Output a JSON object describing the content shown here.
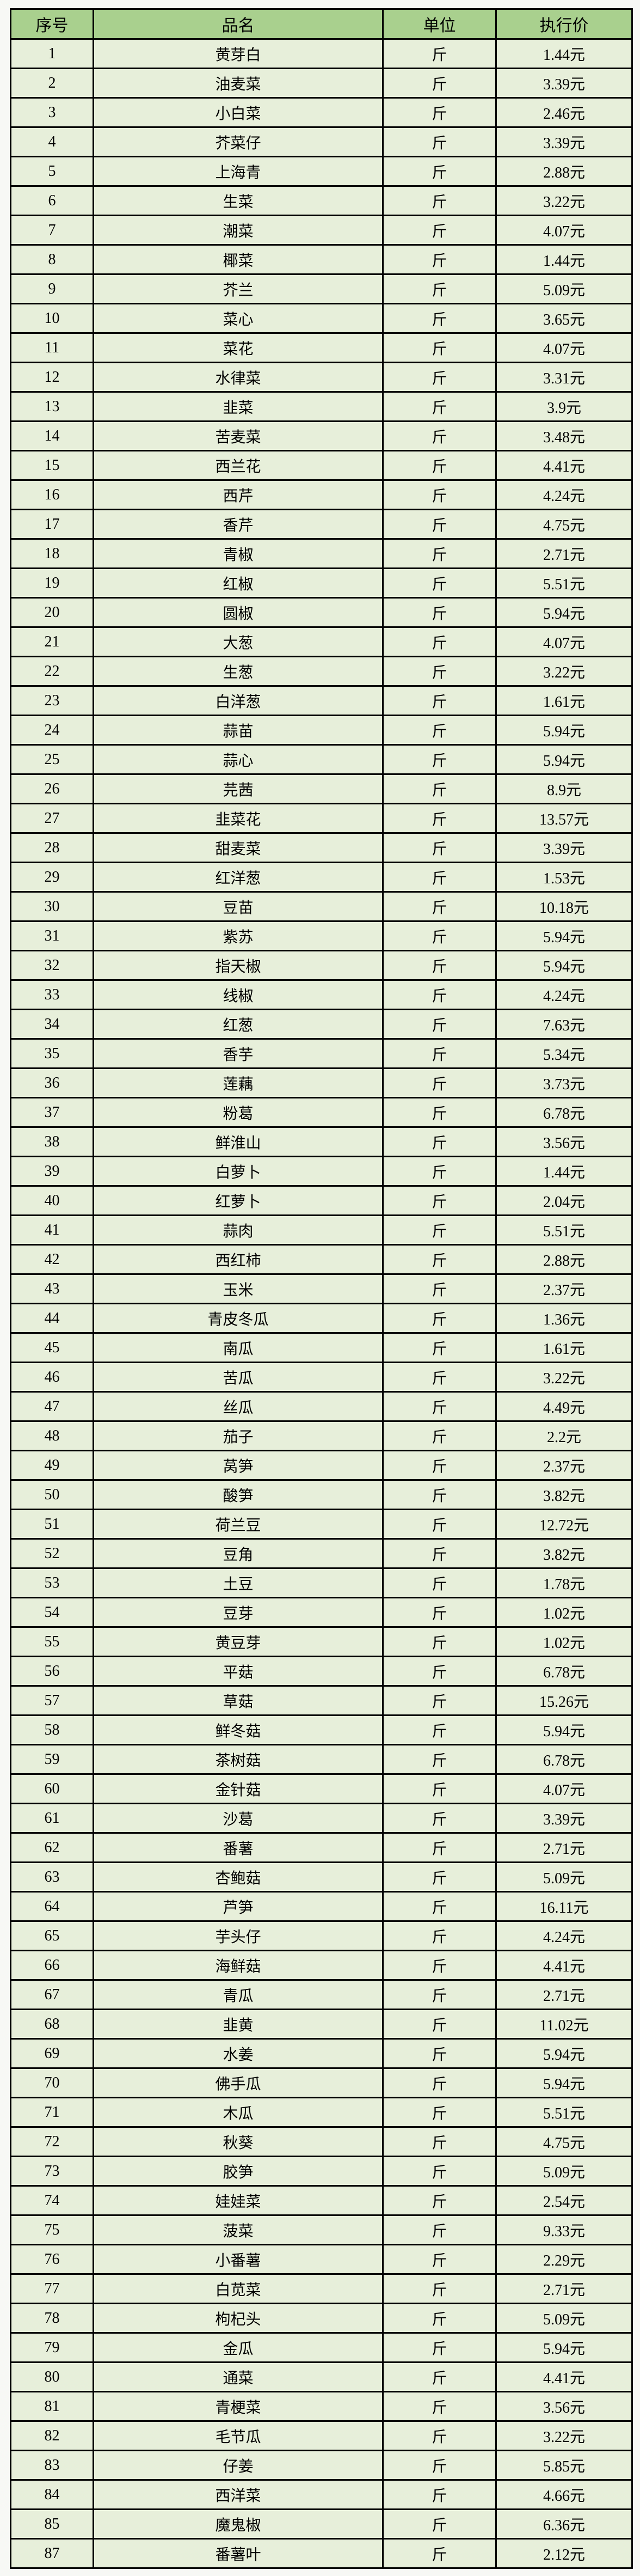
{
  "page": {
    "background": "#f7f8f5"
  },
  "colors": {
    "header_bg": "#a9d08e",
    "row_bg": "#e7efda",
    "border": "#000000",
    "text": "#000000"
  },
  "table": {
    "headers": [
      "序号",
      "品名",
      "单位",
      "执行价"
    ],
    "rows": [
      {
        "no": "1",
        "name": "黄芽白",
        "unit": "斤",
        "price": "1.44元"
      },
      {
        "no": "2",
        "name": "油麦菜",
        "unit": "斤",
        "price": "3.39元"
      },
      {
        "no": "3",
        "name": "小白菜",
        "unit": "斤",
        "price": "2.46元"
      },
      {
        "no": "4",
        "name": "芥菜仔",
        "unit": "斤",
        "price": "3.39元"
      },
      {
        "no": "5",
        "name": "上海青",
        "unit": "斤",
        "price": "2.88元"
      },
      {
        "no": "6",
        "name": "生菜",
        "unit": "斤",
        "price": "3.22元"
      },
      {
        "no": "7",
        "name": "潮菜",
        "unit": "斤",
        "price": "4.07元"
      },
      {
        "no": "8",
        "name": "椰菜",
        "unit": "斤",
        "price": "1.44元"
      },
      {
        "no": "9",
        "name": "芥兰",
        "unit": "斤",
        "price": "5.09元"
      },
      {
        "no": "10",
        "name": "菜心",
        "unit": "斤",
        "price": "3.65元"
      },
      {
        "no": "11",
        "name": "菜花",
        "unit": "斤",
        "price": "4.07元"
      },
      {
        "no": "12",
        "name": "水律菜",
        "unit": "斤",
        "price": "3.31元"
      },
      {
        "no": "13",
        "name": "韭菜",
        "unit": "斤",
        "price": "3.9元"
      },
      {
        "no": "14",
        "name": "苦麦菜",
        "unit": "斤",
        "price": "3.48元"
      },
      {
        "no": "15",
        "name": "西兰花",
        "unit": "斤",
        "price": "4.41元"
      },
      {
        "no": "16",
        "name": "西芹",
        "unit": "斤",
        "price": "4.24元"
      },
      {
        "no": "17",
        "name": "香芹",
        "unit": "斤",
        "price": "4.75元"
      },
      {
        "no": "18",
        "name": "青椒",
        "unit": "斤",
        "price": "2.71元"
      },
      {
        "no": "19",
        "name": "红椒",
        "unit": "斤",
        "price": "5.51元"
      },
      {
        "no": "20",
        "name": "圆椒",
        "unit": "斤",
        "price": "5.94元"
      },
      {
        "no": "21",
        "name": "大葱",
        "unit": "斤",
        "price": "4.07元"
      },
      {
        "no": "22",
        "name": "生葱",
        "unit": "斤",
        "price": "3.22元"
      },
      {
        "no": "23",
        "name": "白洋葱",
        "unit": "斤",
        "price": "1.61元"
      },
      {
        "no": "24",
        "name": "蒜苗",
        "unit": "斤",
        "price": "5.94元"
      },
      {
        "no": "25",
        "name": "蒜心",
        "unit": "斤",
        "price": "5.94元"
      },
      {
        "no": "26",
        "name": "芫茜",
        "unit": "斤",
        "price": "8.9元"
      },
      {
        "no": "27",
        "name": "韭菜花",
        "unit": "斤",
        "price": "13.57元"
      },
      {
        "no": "28",
        "name": "甜麦菜",
        "unit": "斤",
        "price": "3.39元"
      },
      {
        "no": "29",
        "name": "红洋葱",
        "unit": "斤",
        "price": "1.53元"
      },
      {
        "no": "30",
        "name": "豆苗",
        "unit": "斤",
        "price": "10.18元"
      },
      {
        "no": "31",
        "name": "紫苏",
        "unit": "斤",
        "price": "5.94元"
      },
      {
        "no": "32",
        "name": "指天椒",
        "unit": "斤",
        "price": "5.94元"
      },
      {
        "no": "33",
        "name": "线椒",
        "unit": "斤",
        "price": "4.24元"
      },
      {
        "no": "34",
        "name": "红葱",
        "unit": "斤",
        "price": "7.63元"
      },
      {
        "no": "35",
        "name": "香芋",
        "unit": "斤",
        "price": "5.34元"
      },
      {
        "no": "36",
        "name": "莲藕",
        "unit": "斤",
        "price": "3.73元"
      },
      {
        "no": "37",
        "name": "粉葛",
        "unit": "斤",
        "price": "6.78元"
      },
      {
        "no": "38",
        "name": "鲜淮山",
        "unit": "斤",
        "price": "3.56元"
      },
      {
        "no": "39",
        "name": "白萝卜",
        "unit": "斤",
        "price": "1.44元"
      },
      {
        "no": "40",
        "name": "红萝卜",
        "unit": "斤",
        "price": "2.04元"
      },
      {
        "no": "41",
        "name": "蒜肉",
        "unit": "斤",
        "price": "5.51元"
      },
      {
        "no": "42",
        "name": "西红柿",
        "unit": "斤",
        "price": "2.88元"
      },
      {
        "no": "43",
        "name": "玉米",
        "unit": "斤",
        "price": "2.37元"
      },
      {
        "no": "44",
        "name": "青皮冬瓜",
        "unit": "斤",
        "price": "1.36元"
      },
      {
        "no": "45",
        "name": "南瓜",
        "unit": "斤",
        "price": "1.61元"
      },
      {
        "no": "46",
        "name": "苦瓜",
        "unit": "斤",
        "price": "3.22元"
      },
      {
        "no": "47",
        "name": "丝瓜",
        "unit": "斤",
        "price": "4.49元"
      },
      {
        "no": "48",
        "name": "茄子",
        "unit": "斤",
        "price": "2.2元"
      },
      {
        "no": "49",
        "name": "莴笋",
        "unit": "斤",
        "price": "2.37元"
      },
      {
        "no": "50",
        "name": "酸笋",
        "unit": "斤",
        "price": "3.82元"
      },
      {
        "no": "51",
        "name": "荷兰豆",
        "unit": "斤",
        "price": "12.72元"
      },
      {
        "no": "52",
        "name": "豆角",
        "unit": "斤",
        "price": "3.82元"
      },
      {
        "no": "53",
        "name": "土豆",
        "unit": "斤",
        "price": "1.78元"
      },
      {
        "no": "54",
        "name": "豆芽",
        "unit": "斤",
        "price": "1.02元"
      },
      {
        "no": "55",
        "name": "黄豆芽",
        "unit": "斤",
        "price": "1.02元"
      },
      {
        "no": "56",
        "name": "平菇",
        "unit": "斤",
        "price": "6.78元"
      },
      {
        "no": "57",
        "name": "草菇",
        "unit": "斤",
        "price": "15.26元"
      },
      {
        "no": "58",
        "name": "鲜冬菇",
        "unit": "斤",
        "price": "5.94元"
      },
      {
        "no": "59",
        "name": "茶树菇",
        "unit": "斤",
        "price": "6.78元"
      },
      {
        "no": "60",
        "name": "金针菇",
        "unit": "斤",
        "price": "4.07元"
      },
      {
        "no": "61",
        "name": "沙葛",
        "unit": "斤",
        "price": "3.39元"
      },
      {
        "no": "62",
        "name": "番薯",
        "unit": "斤",
        "price": "2.71元"
      },
      {
        "no": "63",
        "name": "杏鲍菇",
        "unit": "斤",
        "price": "5.09元"
      },
      {
        "no": "64",
        "name": "芦笋",
        "unit": "斤",
        "price": "16.11元"
      },
      {
        "no": "65",
        "name": "芋头仔",
        "unit": "斤",
        "price": "4.24元"
      },
      {
        "no": "66",
        "name": "海鲜菇",
        "unit": "斤",
        "price": "4.41元"
      },
      {
        "no": "67",
        "name": "青瓜",
        "unit": "斤",
        "price": "2.71元"
      },
      {
        "no": "68",
        "name": "韭黄",
        "unit": "斤",
        "price": "11.02元"
      },
      {
        "no": "69",
        "name": "水姜",
        "unit": "斤",
        "price": "5.94元"
      },
      {
        "no": "70",
        "name": "佛手瓜",
        "unit": "斤",
        "price": "5.94元"
      },
      {
        "no": "71",
        "name": "木瓜",
        "unit": "斤",
        "price": "5.51元"
      },
      {
        "no": "72",
        "name": "秋葵",
        "unit": "斤",
        "price": "4.75元"
      },
      {
        "no": "73",
        "name": "胶笋",
        "unit": "斤",
        "price": "5.09元"
      },
      {
        "no": "74",
        "name": "娃娃菜",
        "unit": "斤",
        "price": "2.54元"
      },
      {
        "no": "75",
        "name": "菠菜",
        "unit": "斤",
        "price": "9.33元"
      },
      {
        "no": "76",
        "name": "小番薯",
        "unit": "斤",
        "price": "2.29元"
      },
      {
        "no": "77",
        "name": "白苋菜",
        "unit": "斤",
        "price": "2.71元"
      },
      {
        "no": "78",
        "name": "枸杞头",
        "unit": "斤",
        "price": "5.09元"
      },
      {
        "no": "79",
        "name": "金瓜",
        "unit": "斤",
        "price": "5.94元"
      },
      {
        "no": "80",
        "name": "通菜",
        "unit": "斤",
        "price": "4.41元"
      },
      {
        "no": "81",
        "name": "青梗菜",
        "unit": "斤",
        "price": "3.56元"
      },
      {
        "no": "82",
        "name": "毛节瓜",
        "unit": "斤",
        "price": "3.22元"
      },
      {
        "no": "83",
        "name": "仔姜",
        "unit": "斤",
        "price": "5.85元"
      },
      {
        "no": "84",
        "name": "西洋菜",
        "unit": "斤",
        "price": "4.66元"
      },
      {
        "no": "85",
        "name": "魔鬼椒",
        "unit": "斤",
        "price": "6.36元"
      },
      {
        "no": "87",
        "name": "番薯叶",
        "unit": "斤",
        "price": "2.12元"
      }
    ]
  }
}
